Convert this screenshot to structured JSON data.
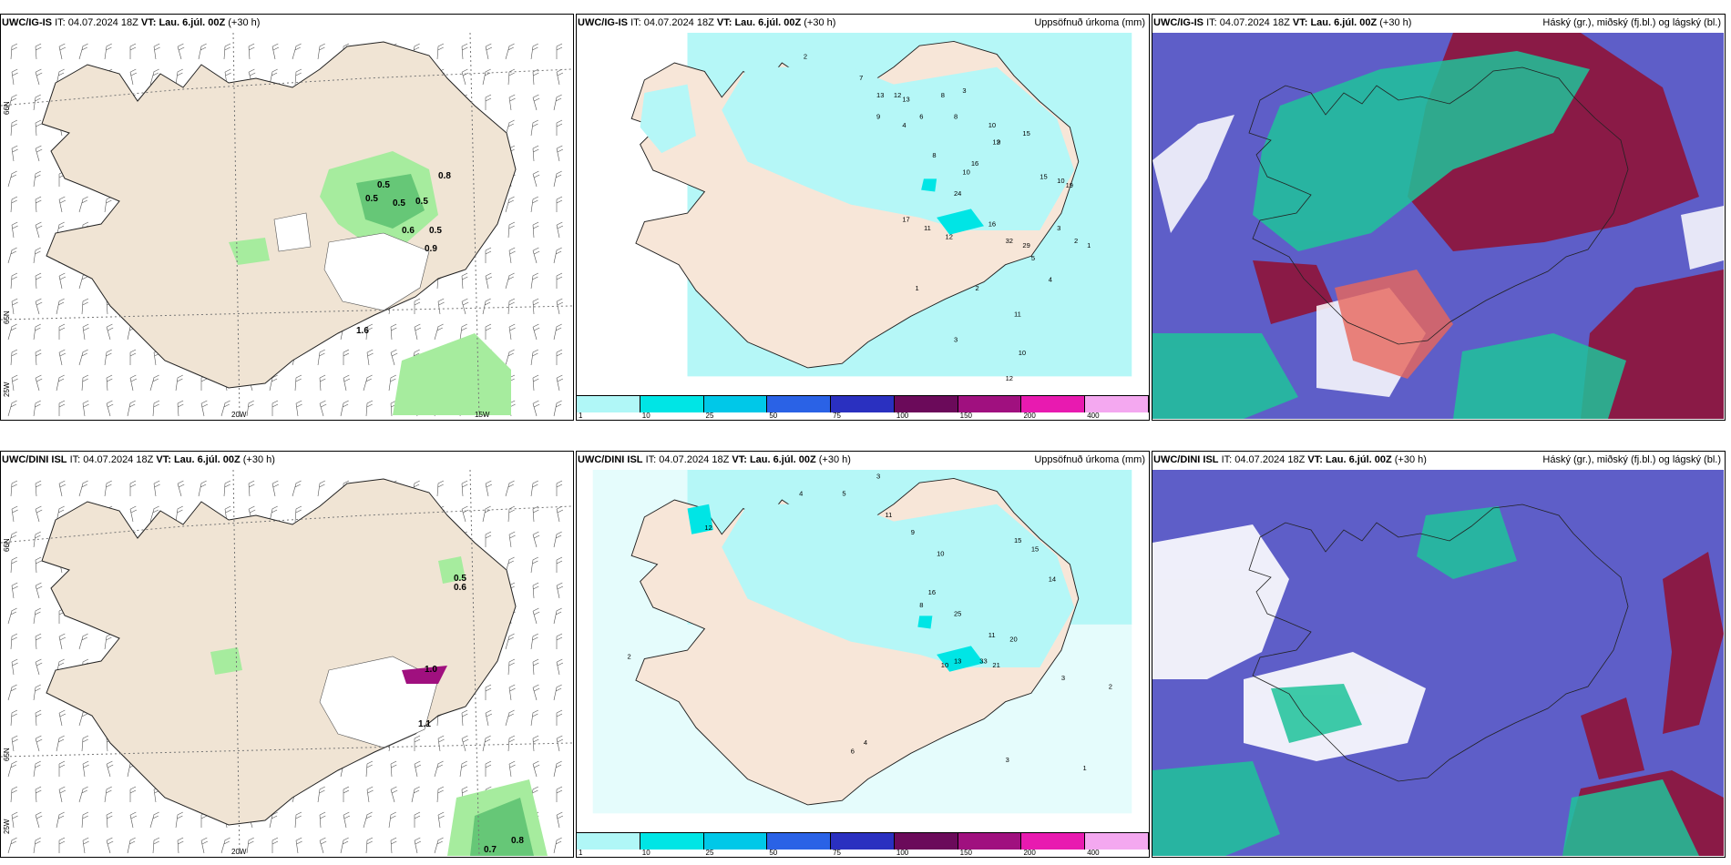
{
  "rows": [
    {
      "model": "UWC/IG-IS",
      "it_prefix": "IT:",
      "it": "04.07.2024 18Z",
      "vt_prefix": "VT:",
      "vt": "Lau. 6.júl. 00Z",
      "lead": "(+30 h)",
      "wind_labels": [
        "0.5",
        "0.5",
        "0.8",
        "0.5",
        "0.5",
        "0.6",
        "0.5",
        "0.9",
        "1.6"
      ],
      "precip_labels": [
        "2",
        "7",
        "13",
        "12",
        "13",
        "6",
        "8",
        "3",
        "9",
        "4",
        "8",
        "10",
        "9",
        "15",
        "15",
        "10",
        "19",
        "16",
        "12",
        "10",
        "8",
        "24",
        "17",
        "11",
        "12",
        "16",
        "32",
        "29",
        "5",
        "4",
        "3",
        "2",
        "1",
        "11",
        "10",
        "3",
        "1",
        "2",
        "12"
      ]
    },
    {
      "model": "UWC/DINI ISL",
      "it_prefix": "IT:",
      "it": "04.07.2024 18Z",
      "vt_prefix": "VT:",
      "vt": "Lau. 6.júl. 00Z",
      "lead": "(+30 h)",
      "wind_labels": [
        "0.5",
        "0.6",
        "1.0",
        "1.1",
        "0.7",
        "0.8"
      ],
      "precip_labels": [
        "4",
        "5",
        "3",
        "11",
        "16",
        "12",
        "9",
        "10",
        "15",
        "15",
        "14",
        "25",
        "8",
        "11",
        "33",
        "21",
        "20",
        "13",
        "10",
        "4",
        "6",
        "2",
        "3",
        "1",
        "2",
        "3"
      ]
    }
  ],
  "precip_title": "Uppsöfnuð úrkoma (mm)",
  "cloud_title": "Háský (gr.), miðský (fj.bl.) og lágský (bl.)",
  "axis_labels": {
    "lat66": "66N",
    "lat65": "65N",
    "lon25": "25W",
    "lon20": "20W",
    "lon15": "15W"
  },
  "colorbar": {
    "ticks": [
      "1",
      "10",
      "25",
      "50",
      "75",
      "100",
      "150",
      "200",
      "400"
    ],
    "colors": [
      "#b0f7f7",
      "#00e5e5",
      "#00c8e8",
      "#2a62e6",
      "#2a30c0",
      "#6b0a5a",
      "#a0107f",
      "#e81ab0",
      "#f4a8f0"
    ]
  },
  "colors": {
    "land": "#f0e4d4",
    "ocean_precip": "#b5f7f7",
    "green_light": "#a6ec9e",
    "green_dark": "#4cb866",
    "cloud_high": "#5e5ec8",
    "cloud_mid": "#8a1a46",
    "cloud_low": "#1fc39a"
  }
}
